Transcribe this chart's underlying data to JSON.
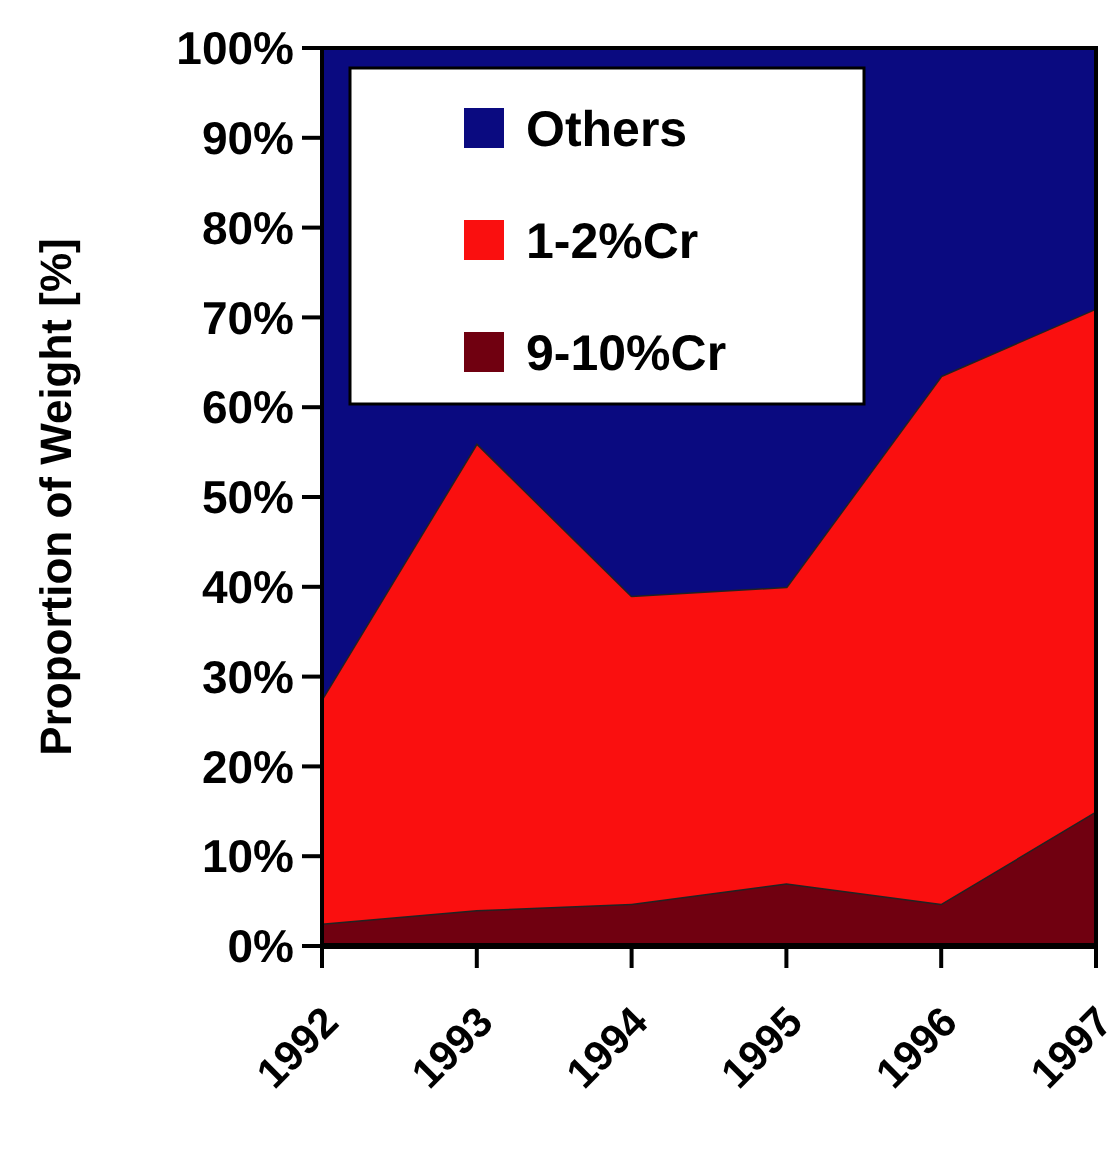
{
  "chart_data": {
    "type": "area",
    "stacked": true,
    "ylabel": "Proportion of Weight [%]",
    "categories": [
      "1992",
      "1993",
      "1994",
      "1995",
      "1996",
      "1997"
    ],
    "series": [
      {
        "name": "9-10%Cr",
        "color": "#700010",
        "values": [
          2.5,
          4,
          4.7,
          7,
          4.7,
          15
        ]
      },
      {
        "name": "1-2%Cr",
        "color": "#fa0f0f",
        "values": [
          25,
          52,
          34.3,
          33,
          58.8,
          56
        ]
      },
      {
        "name": "Others",
        "color": "#0a0a80",
        "values": [
          72.5,
          44,
          61,
          60,
          36.5,
          29
        ]
      }
    ],
    "ylim": [
      0,
      100
    ],
    "yticks": [
      {
        "value": 0,
        "label": "0%"
      },
      {
        "value": 10,
        "label": "10%"
      },
      {
        "value": 20,
        "label": "20%"
      },
      {
        "value": 30,
        "label": "30%"
      },
      {
        "value": 40,
        "label": "40%"
      },
      {
        "value": 50,
        "label": "50%"
      },
      {
        "value": 60,
        "label": "60%"
      },
      {
        "value": 70,
        "label": "70%"
      },
      {
        "value": 80,
        "label": "80%"
      },
      {
        "value": 90,
        "label": "90%"
      },
      {
        "value": 100,
        "label": "100%"
      }
    ],
    "legend": "top left",
    "grid": false
  }
}
